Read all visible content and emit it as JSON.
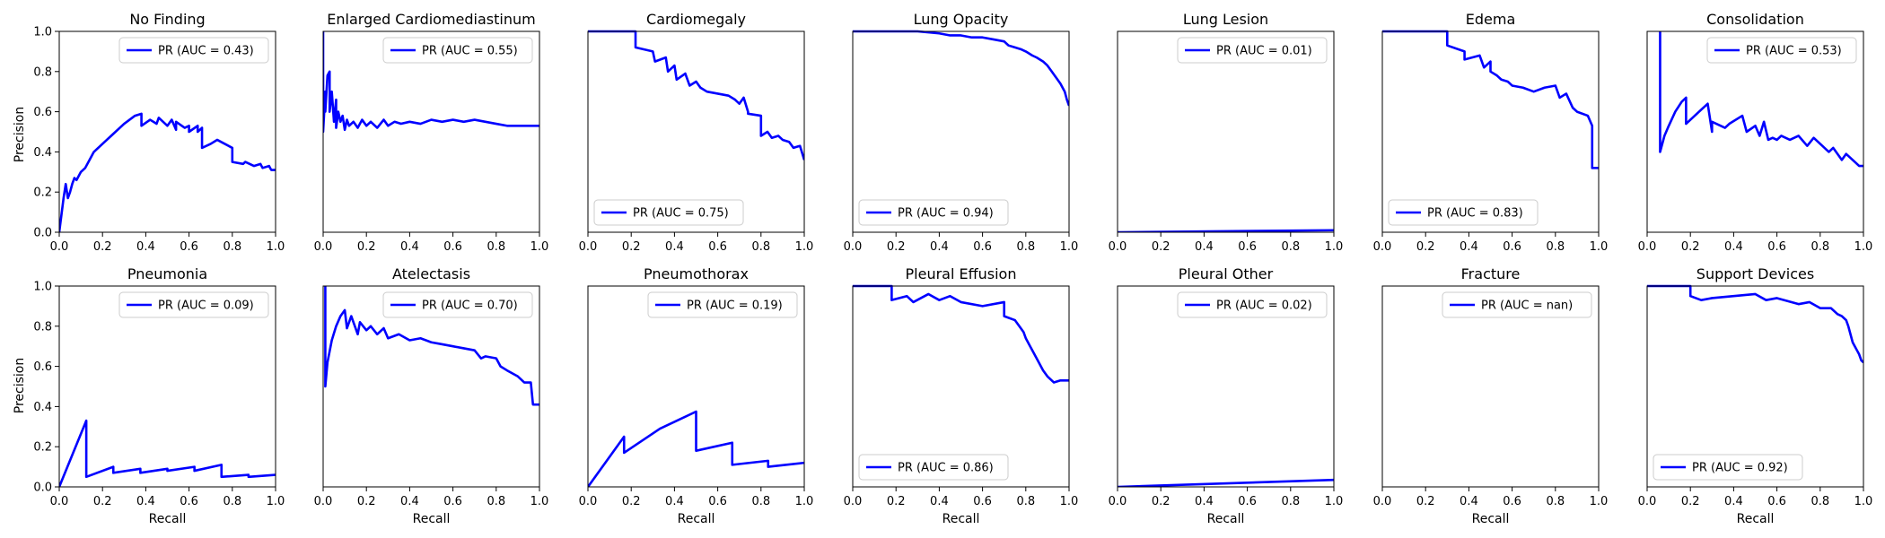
{
  "figure": {
    "x_tick_labels": [
      "0.0",
      "0.2",
      "0.4",
      "0.6",
      "0.8",
      "1.0"
    ],
    "y_tick_labels": [
      "0.0",
      "0.2",
      "0.4",
      "0.6",
      "0.8",
      "1.0"
    ],
    "xlabel": "Recall",
    "ylabel": "Precision",
    "line_color": "#0000ff"
  },
  "chart_data": [
    {
      "type": "line",
      "title": "No Finding",
      "legend": "PR (AUC = 0.43)",
      "legend_loc": "upper right",
      "xlim": [
        0,
        1
      ],
      "ylim": [
        0,
        1
      ],
      "x": [
        0,
        0.02,
        0.03,
        0.04,
        0.05,
        0.06,
        0.07,
        0.08,
        0.1,
        0.12,
        0.14,
        0.16,
        0.2,
        0.25,
        0.3,
        0.35,
        0.38,
        0.38,
        0.42,
        0.45,
        0.46,
        0.5,
        0.52,
        0.54,
        0.54,
        0.58,
        0.6,
        0.6,
        0.64,
        0.64,
        0.66,
        0.66,
        0.7,
        0.73,
        0.8,
        0.8,
        0.85,
        0.86,
        0.9,
        0.93,
        0.94,
        0.97,
        0.98,
        1.0
      ],
      "y": [
        0,
        0.17,
        0.24,
        0.17,
        0.2,
        0.24,
        0.27,
        0.26,
        0.3,
        0.32,
        0.36,
        0.4,
        0.44,
        0.49,
        0.54,
        0.58,
        0.59,
        0.53,
        0.56,
        0.54,
        0.57,
        0.53,
        0.56,
        0.51,
        0.55,
        0.52,
        0.53,
        0.5,
        0.53,
        0.5,
        0.52,
        0.42,
        0.44,
        0.46,
        0.42,
        0.35,
        0.34,
        0.35,
        0.33,
        0.34,
        0.32,
        0.33,
        0.31,
        0.31
      ]
    },
    {
      "type": "line",
      "title": "Enlarged Cardiomediastinum",
      "legend": "PR (AUC = 0.55)",
      "legend_loc": "upper right",
      "xlim": [
        0,
        1
      ],
      "ylim": [
        0,
        1
      ],
      "x": [
        0,
        0.0,
        0.01,
        0.01,
        0.02,
        0.03,
        0.03,
        0.04,
        0.05,
        0.06,
        0.06,
        0.07,
        0.08,
        0.09,
        0.1,
        0.11,
        0.12,
        0.14,
        0.16,
        0.18,
        0.2,
        0.22,
        0.25,
        0.28,
        0.3,
        0.33,
        0.36,
        0.4,
        0.45,
        0.5,
        0.55,
        0.6,
        0.65,
        0.7,
        0.75,
        0.8,
        0.85,
        0.9,
        0.95,
        1.0
      ],
      "y": [
        1.0,
        0.5,
        0.7,
        0.6,
        0.78,
        0.8,
        0.6,
        0.7,
        0.55,
        0.66,
        0.52,
        0.6,
        0.55,
        0.58,
        0.51,
        0.56,
        0.53,
        0.55,
        0.52,
        0.56,
        0.53,
        0.55,
        0.52,
        0.56,
        0.53,
        0.55,
        0.54,
        0.55,
        0.54,
        0.56,
        0.55,
        0.56,
        0.55,
        0.56,
        0.55,
        0.54,
        0.53,
        0.53,
        0.53,
        0.53
      ]
    },
    {
      "type": "line",
      "title": "Cardiomegaly",
      "legend": "PR (AUC = 0.75)",
      "legend_loc": "lower left",
      "xlim": [
        0,
        1
      ],
      "ylim": [
        0,
        1
      ],
      "x": [
        0.0,
        0.22,
        0.22,
        0.3,
        0.31,
        0.36,
        0.37,
        0.4,
        0.41,
        0.45,
        0.47,
        0.5,
        0.52,
        0.55,
        0.6,
        0.65,
        0.68,
        0.7,
        0.72,
        0.74,
        0.74,
        0.8,
        0.8,
        0.83,
        0.85,
        0.88,
        0.9,
        0.93,
        0.95,
        0.98,
        1.0
      ],
      "y": [
        1.0,
        1.0,
        0.92,
        0.9,
        0.85,
        0.87,
        0.8,
        0.83,
        0.76,
        0.79,
        0.73,
        0.75,
        0.72,
        0.7,
        0.69,
        0.68,
        0.66,
        0.64,
        0.67,
        0.6,
        0.59,
        0.58,
        0.48,
        0.5,
        0.47,
        0.48,
        0.46,
        0.45,
        0.42,
        0.43,
        0.36
      ]
    },
    {
      "type": "line",
      "title": "Lung Opacity",
      "legend": "PR (AUC = 0.94)",
      "legend_loc": "lower left",
      "xlim": [
        0,
        1
      ],
      "ylim": [
        0,
        1
      ],
      "x": [
        0.0,
        0.3,
        0.4,
        0.45,
        0.5,
        0.55,
        0.6,
        0.65,
        0.7,
        0.72,
        0.75,
        0.78,
        0.8,
        0.83,
        0.85,
        0.88,
        0.9,
        0.92,
        0.94,
        0.96,
        0.98,
        0.99,
        1.0
      ],
      "y": [
        1.0,
        1.0,
        0.99,
        0.98,
        0.98,
        0.97,
        0.97,
        0.96,
        0.95,
        0.93,
        0.92,
        0.91,
        0.9,
        0.88,
        0.87,
        0.85,
        0.83,
        0.8,
        0.77,
        0.74,
        0.7,
        0.66,
        0.63
      ]
    },
    {
      "type": "line",
      "title": "Lung Lesion",
      "legend": "PR (AUC = 0.01)",
      "legend_loc": "upper right",
      "xlim": [
        0,
        1
      ],
      "ylim": [
        0,
        1
      ],
      "x": [
        0.0,
        1.0
      ],
      "y": [
        0.0,
        0.01
      ]
    },
    {
      "type": "line",
      "title": "Edema",
      "legend": "PR (AUC = 0.83)",
      "legend_loc": "lower left",
      "xlim": [
        0,
        1
      ],
      "ylim": [
        0,
        1
      ],
      "x": [
        0.0,
        0.3,
        0.3,
        0.38,
        0.38,
        0.45,
        0.47,
        0.5,
        0.5,
        0.53,
        0.55,
        0.58,
        0.6,
        0.65,
        0.7,
        0.75,
        0.8,
        0.82,
        0.85,
        0.88,
        0.9,
        0.95,
        0.97,
        0.97,
        1.0
      ],
      "y": [
        1.0,
        1.0,
        0.93,
        0.9,
        0.86,
        0.88,
        0.82,
        0.85,
        0.8,
        0.78,
        0.76,
        0.75,
        0.73,
        0.72,
        0.7,
        0.72,
        0.73,
        0.67,
        0.69,
        0.62,
        0.6,
        0.58,
        0.53,
        0.32,
        0.32
      ]
    },
    {
      "type": "line",
      "title": "Consolidation",
      "legend": "PR (AUC = 0.53)",
      "legend_loc": "upper right",
      "xlim": [
        0,
        1
      ],
      "ylim": [
        0,
        1
      ],
      "x": [
        0.06,
        0.06,
        0.08,
        0.1,
        0.13,
        0.16,
        0.18,
        0.18,
        0.24,
        0.28,
        0.3,
        0.3,
        0.36,
        0.38,
        0.44,
        0.46,
        0.5,
        0.52,
        0.54,
        0.56,
        0.58,
        0.6,
        0.62,
        0.66,
        0.7,
        0.74,
        0.77,
        0.8,
        0.84,
        0.86,
        0.9,
        0.92,
        0.96,
        0.98,
        1.0
      ],
      "y": [
        1.0,
        0.4,
        0.48,
        0.53,
        0.6,
        0.65,
        0.67,
        0.54,
        0.6,
        0.64,
        0.5,
        0.55,
        0.52,
        0.54,
        0.58,
        0.5,
        0.53,
        0.48,
        0.55,
        0.46,
        0.47,
        0.46,
        0.48,
        0.46,
        0.48,
        0.43,
        0.47,
        0.44,
        0.4,
        0.42,
        0.36,
        0.39,
        0.35,
        0.33,
        0.33
      ]
    },
    {
      "type": "line",
      "title": "Pneumonia",
      "legend": "PR (AUC = 0.09)",
      "legend_loc": "upper right",
      "xlim": [
        0,
        1
      ],
      "ylim": [
        0,
        1
      ],
      "x": [
        0.0,
        0.125,
        0.125,
        0.25,
        0.25,
        0.375,
        0.375,
        0.5,
        0.5,
        0.625,
        0.625,
        0.75,
        0.75,
        0.875,
        0.875,
        1.0
      ],
      "y": [
        0.0,
        0.33,
        0.05,
        0.1,
        0.07,
        0.09,
        0.07,
        0.09,
        0.08,
        0.1,
        0.08,
        0.11,
        0.05,
        0.06,
        0.05,
        0.06
      ]
    },
    {
      "type": "line",
      "title": "Atelectasis",
      "legend": "PR (AUC = 0.70)",
      "legend_loc": "upper right",
      "xlim": [
        0,
        1
      ],
      "ylim": [
        0,
        1
      ],
      "x": [
        0.01,
        0.01,
        0.02,
        0.04,
        0.06,
        0.08,
        0.1,
        0.11,
        0.13,
        0.16,
        0.17,
        0.2,
        0.22,
        0.25,
        0.28,
        0.3,
        0.35,
        0.4,
        0.45,
        0.5,
        0.55,
        0.6,
        0.65,
        0.7,
        0.73,
        0.75,
        0.8,
        0.82,
        0.85,
        0.9,
        0.93,
        0.96,
        0.97,
        1.0
      ],
      "y": [
        1.0,
        0.5,
        0.62,
        0.73,
        0.8,
        0.85,
        0.88,
        0.79,
        0.85,
        0.76,
        0.82,
        0.78,
        0.8,
        0.76,
        0.79,
        0.74,
        0.76,
        0.73,
        0.74,
        0.72,
        0.71,
        0.7,
        0.69,
        0.68,
        0.64,
        0.65,
        0.64,
        0.6,
        0.58,
        0.55,
        0.52,
        0.52,
        0.41,
        0.41
      ]
    },
    {
      "type": "line",
      "title": "Pneumothorax",
      "legend": "PR (AUC = 0.19)",
      "legend_loc": "upper right",
      "xlim": [
        0,
        1
      ],
      "ylim": [
        0,
        1
      ],
      "x": [
        0.0,
        0.167,
        0.167,
        0.333,
        0.5,
        0.5,
        0.667,
        0.667,
        0.833,
        0.833,
        1.0
      ],
      "y": [
        0.0,
        0.25,
        0.17,
        0.29,
        0.375,
        0.18,
        0.22,
        0.11,
        0.13,
        0.1,
        0.12
      ]
    },
    {
      "type": "line",
      "title": "Pleural Effusion",
      "legend": "PR (AUC = 0.86)",
      "legend_loc": "lower left",
      "xlim": [
        0,
        1
      ],
      "ylim": [
        0,
        1
      ],
      "x": [
        0.0,
        0.18,
        0.18,
        0.25,
        0.28,
        0.35,
        0.4,
        0.45,
        0.5,
        0.6,
        0.7,
        0.7,
        0.75,
        0.77,
        0.79,
        0.8,
        0.82,
        0.84,
        0.86,
        0.88,
        0.9,
        0.93,
        0.96,
        1.0
      ],
      "y": [
        1.0,
        1.0,
        0.93,
        0.95,
        0.92,
        0.96,
        0.93,
        0.95,
        0.92,
        0.9,
        0.92,
        0.85,
        0.83,
        0.8,
        0.77,
        0.74,
        0.7,
        0.66,
        0.62,
        0.58,
        0.55,
        0.52,
        0.53,
        0.53
      ]
    },
    {
      "type": "line",
      "title": "Pleural Other",
      "legend": "PR (AUC = 0.02)",
      "legend_loc": "upper right",
      "xlim": [
        0,
        1
      ],
      "ylim": [
        0,
        1
      ],
      "x": [
        0.0,
        1.0
      ],
      "y": [
        0.0,
        0.035
      ]
    },
    {
      "type": "line",
      "title": "Fracture",
      "legend": "PR (AUC = nan)",
      "legend_loc": "upper right",
      "xlim": [
        0,
        1
      ],
      "ylim": [
        0,
        1
      ],
      "x": [],
      "y": []
    },
    {
      "type": "line",
      "title": "Support Devices",
      "legend": "PR (AUC = 0.92)",
      "legend_loc": "lower left",
      "xlim": [
        0,
        1
      ],
      "ylim": [
        0,
        1
      ],
      "x": [
        0.0,
        0.2,
        0.2,
        0.25,
        0.3,
        0.4,
        0.5,
        0.55,
        0.6,
        0.7,
        0.75,
        0.8,
        0.85,
        0.88,
        0.9,
        0.92,
        0.93,
        0.94,
        0.95,
        0.96,
        0.97,
        0.98,
        0.99,
        1.0
      ],
      "y": [
        1.0,
        1.0,
        0.95,
        0.93,
        0.94,
        0.95,
        0.96,
        0.93,
        0.94,
        0.91,
        0.92,
        0.89,
        0.89,
        0.86,
        0.85,
        0.83,
        0.8,
        0.76,
        0.72,
        0.7,
        0.68,
        0.66,
        0.63,
        0.62
      ]
    }
  ]
}
